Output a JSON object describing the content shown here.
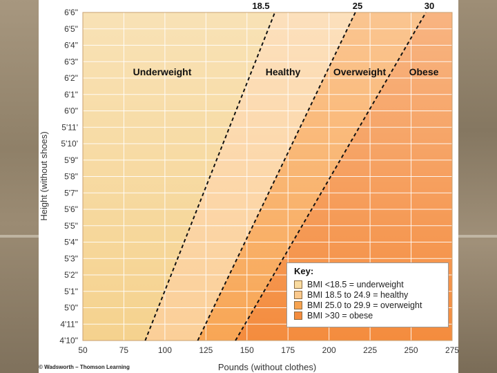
{
  "chart_data": {
    "type": "area",
    "title": "",
    "xlabel": "Pounds (without clothes)",
    "ylabel": "Height (without shoes)",
    "xlim": [
      50,
      275
    ],
    "x_ticks": [
      50,
      75,
      100,
      125,
      150,
      175,
      200,
      225,
      250,
      275
    ],
    "y_tick_labels": [
      "4'10\"",
      "4'11\"",
      "5'0\"",
      "5'1\"",
      "5'2\"",
      "5'3\"",
      "5'4\"",
      "5'5\"",
      "5'6\"",
      "5'7\"",
      "5'8\"",
      "5'9\"",
      "5'10'",
      "5'11'",
      "6'0\"",
      "6'1\"",
      "6'2\"",
      "6'3\"",
      "6'4\"",
      "6'5\"",
      "6'6\""
    ],
    "ylim_inches": [
      58,
      78
    ],
    "grid": true,
    "series": [
      {
        "name": "18.5",
        "x": [
          88,
          167
        ],
        "y": [
          58,
          78
        ]
      },
      {
        "name": "25",
        "x": [
          120,
          216
        ],
        "y": [
          58,
          78
        ]
      },
      {
        "name": "30",
        "x": [
          143,
          259
        ],
        "y": [
          58,
          78
        ]
      }
    ],
    "zones": [
      {
        "label": "Underweight",
        "color": "#f6ce8a"
      },
      {
        "label": "Healthy",
        "color": "#fbc98d"
      },
      {
        "label": "Overweight",
        "color": "#f7a350"
      },
      {
        "label": "Obese",
        "color": "#f48c3e"
      }
    ],
    "legend": {
      "title": "Key:",
      "position": "bottom-right",
      "entries": [
        {
          "label": "BMI <18.5 = underweight",
          "color": "#f9dba0"
        },
        {
          "label": "BMI 18.5 to 24.9 = healthy",
          "color": "#fbc98d"
        },
        {
          "label": "BMI 25.0 to 29.9 = overweight",
          "color": "#f7a350"
        },
        {
          "label": "BMI >30 = obese",
          "color": "#f48c3e"
        }
      ]
    }
  },
  "credit": "© Wadsworth – Thomson Learning"
}
